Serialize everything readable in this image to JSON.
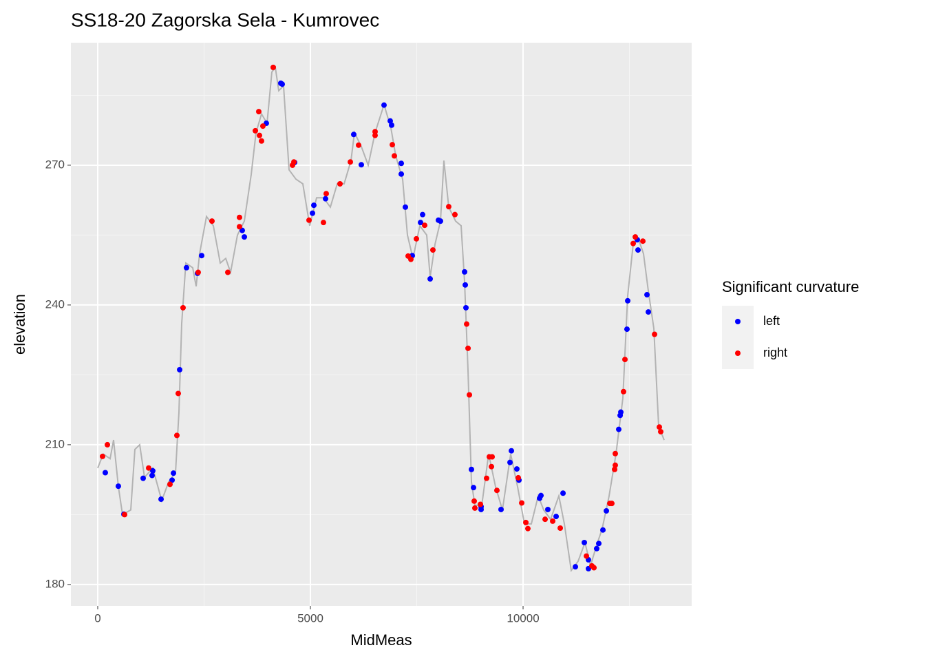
{
  "chart_data": {
    "type": "scatter",
    "title": "SS18-20 Zagorska Sela - Kumrovec",
    "x_label": "MidMeas",
    "y_label": "elevation",
    "legend_title": "Significant curvature",
    "legend_position": "right",
    "grid": true,
    "xlim": [
      -631,
      13964
    ],
    "ylim": [
      175.4,
      296.3
    ],
    "xticks": [
      0,
      5000,
      10000
    ],
    "yticks": [
      180,
      210,
      240,
      270
    ],
    "line": {
      "color": "#b3b3b3",
      "x": [
        0,
        129,
        291,
        372,
        485,
        583,
        777,
        874,
        987,
        1100,
        1294,
        1505,
        1667,
        1828,
        1909,
        1974,
        2071,
        2233,
        2314,
        2395,
        2557,
        2718,
        2880,
        3010,
        3123,
        3285,
        3447,
        3608,
        3722,
        3851,
        3981,
        4094,
        4175,
        4256,
        4369,
        4498,
        4660,
        4822,
        4984,
        5146,
        5307,
        5469,
        5631,
        5793,
        5955,
        6036,
        6197,
        6359,
        6521,
        6731,
        6893,
        7006,
        7168,
        7282,
        7411,
        7573,
        7735,
        7816,
        7929,
        8058,
        8139,
        8252,
        8414,
        8544,
        8625,
        8706,
        8786,
        8867,
        9029,
        9191,
        9353,
        9515,
        9709,
        9871,
        10032,
        10194,
        10356,
        10485,
        10647,
        10841,
        10971,
        11133,
        11294,
        11456,
        11586,
        11715,
        11861,
        12023,
        12184,
        12346,
        12460,
        12589,
        12718,
        12832,
        12945,
        13074,
        13188,
        13317
      ],
      "y": [
        205,
        208,
        207,
        211,
        201,
        195,
        196,
        209,
        210,
        203,
        205,
        198,
        202,
        204,
        217,
        236,
        249,
        248,
        244,
        251,
        259,
        257,
        249,
        250,
        247,
        255,
        258,
        268,
        277,
        281,
        279,
        290,
        291,
        286,
        287,
        269,
        267,
        266,
        257,
        263,
        263,
        261,
        266,
        266,
        271,
        277,
        274,
        270,
        277,
        283,
        278,
        272,
        267,
        255,
        250,
        257,
        255,
        246,
        253,
        258,
        271,
        261,
        258,
        257,
        245,
        226,
        202,
        197,
        197,
        208,
        201,
        196,
        208,
        201,
        193,
        193,
        199,
        196,
        194,
        199,
        193,
        183,
        185,
        189,
        184,
        188,
        192,
        199,
        208,
        220,
        242,
        253,
        254,
        251,
        243,
        235,
        214,
        211
      ]
    },
    "series": [
      {
        "name": "left",
        "color": "#0000ff",
        "x": [
          178,
          485,
          615,
          1068,
          1294,
          1278,
          1489,
          1748,
          1780,
          1926,
          2087,
          2346,
          2443,
          3398,
          3447,
          3964,
          4304,
          4337,
          4628,
          5049,
          5081,
          5356,
          6019,
          6197,
          6731,
          6877,
          6909,
          7136,
          7136,
          7233,
          7395,
          7589,
          7638,
          7816,
          8010,
          8058,
          8625,
          8641,
          8657,
          8786,
          8835,
          9013,
          9013,
          9482,
          9693,
          9725,
          9854,
          9903,
          10388,
          10421,
          10582,
          10777,
          10939,
          11230,
          11440,
          11537,
          11537,
          11731,
          11780,
          11877,
          11958,
          12249,
          12298,
          12282,
          12460,
          12443,
          12686,
          12702,
          12913,
          12945
        ],
        "y": [
          204,
          201.1,
          195.1,
          202.8,
          204.4,
          203.4,
          198.3,
          202.4,
          203.9,
          226.1,
          248,
          246.8,
          250.6,
          256,
          254.6,
          279,
          287.6,
          287.4,
          270.6,
          259.7,
          261.4,
          262.8,
          276.6,
          270.1,
          282.9,
          279.5,
          278.6,
          270.4,
          268.1,
          261,
          250.6,
          257.7,
          259.4,
          245.6,
          258.2,
          258,
          247.1,
          244.3,
          239.4,
          204.7,
          200.8,
          196.7,
          196.1,
          196.1,
          206.2,
          208.7,
          204.8,
          202.4,
          198.5,
          199.1,
          196.1,
          194.6,
          199.6,
          183.8,
          189,
          185.3,
          183.4,
          187.7,
          188.8,
          191.7,
          195.8,
          213.3,
          217,
          216.3,
          240.9,
          234.8,
          254,
          251.8,
          242.2,
          238.5
        ]
      },
      {
        "name": "right",
        "color": "#ff0000",
        "x": [
          113,
          227,
          631,
          1197,
          1699,
          1861,
          1893,
          2006,
          2362,
          2686,
          3058,
          3333,
          3333,
          3706,
          3786,
          3803,
          3851,
          3883,
          4126,
          4579,
          4612,
          4968,
          5307,
          5372,
          5696,
          5939,
          6133,
          6521,
          6521,
          6926,
          6974,
          7298,
          7362,
          7492,
          7686,
          7880,
          8252,
          8398,
          8673,
          8706,
          8738,
          8851,
          8867,
          8997,
          9142,
          9207,
          9272,
          9256,
          9385,
          9887,
          9968,
          10065,
          10113,
          10518,
          10696,
          10874,
          11489,
          11618,
          11667,
          12168,
          12168,
          12152,
          12039,
          12087,
          12362,
          12395,
          12589,
          12638,
          12816,
          13091,
          13204,
          13236
        ],
        "y": [
          207.5,
          210,
          195,
          205,
          201.5,
          212,
          221,
          239.4,
          247,
          258,
          247,
          258.8,
          256.8,
          277.4,
          281.5,
          276.4,
          275.2,
          278.4,
          291,
          270,
          270.7,
          258.2,
          257.7,
          263.9,
          266,
          270.7,
          274.3,
          276.4,
          277.2,
          274.4,
          272,
          250.5,
          249.8,
          254.2,
          257.1,
          251.8,
          261.1,
          259.4,
          235.9,
          230.7,
          220.7,
          197.9,
          196.4,
          197.2,
          202.8,
          207.4,
          207.4,
          205.3,
          200.2,
          202.9,
          197.5,
          193.3,
          192,
          194,
          193.6,
          192.1,
          186.1,
          184,
          183.6,
          208.1,
          205.6,
          204.7,
          197.4,
          197.4,
          221.4,
          228.3,
          253.2,
          254.6,
          253.7,
          233.7,
          213.8,
          212.8
        ]
      }
    ]
  }
}
